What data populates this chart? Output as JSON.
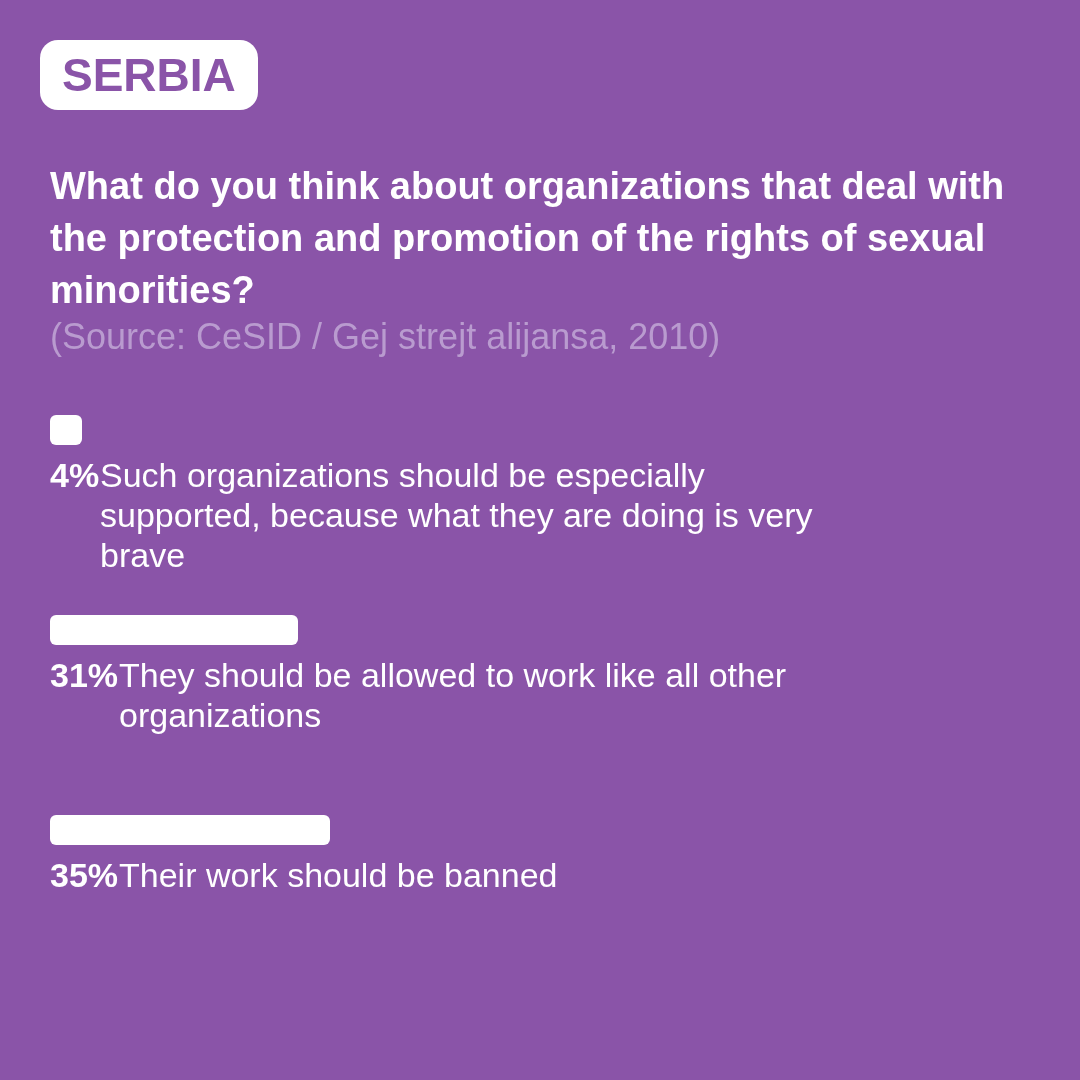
{
  "chart_data": {
    "type": "bar",
    "orientation": "horizontal",
    "title": "What do you think about organizations that deal with the protection and promotion of the rights of sexual minorities?",
    "annotations": [
      "SERBIA",
      "(Source: CeSID / Gej strejt alijansa, 2010)"
    ],
    "categories": [
      "Such organizations should be especially supported, because what they are doing is very brave",
      "They should be allowed to work like all other organizations",
      "Their work should be banned"
    ],
    "values": [
      4,
      31,
      35
    ],
    "color": "#ffffff",
    "value_labels": [
      "4%",
      "31%",
      "35%"
    ]
  }
}
